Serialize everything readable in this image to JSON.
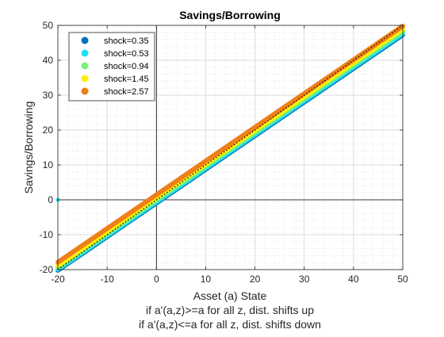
{
  "chart_data": {
    "type": "scatter",
    "title": "Savings/Borrowing",
    "xlabel": "Asset (a) State",
    "ylabel": "Savings/Borrowing",
    "notes": [
      "if a'(a,z)>=a for all z, dist. shifts up",
      "if a'(a,z)<=a for all z, dist. shifts down"
    ],
    "xlim": [
      -20,
      50
    ],
    "ylim": [
      -20,
      50
    ],
    "xticks": [
      -20,
      -10,
      0,
      10,
      20,
      30,
      40,
      50
    ],
    "yticks": [
      -20,
      -10,
      0,
      10,
      20,
      30,
      40,
      50
    ],
    "grid": "on",
    "minor_grid": "on",
    "legend_location": "top-left",
    "reference_line": {
      "style": "dotted",
      "color": "#000000",
      "x": [
        -20,
        50
      ],
      "y": [
        -20,
        50
      ]
    },
    "axis_lines": {
      "x0": 0,
      "y0": 0
    },
    "series": [
      {
        "name": "shock=0.35",
        "color": "#0072BD",
        "x": [
          -20,
          50
        ],
        "y": [
          -20.2,
          47.3
        ]
      },
      {
        "name": "shock=0.53",
        "color": "#1FE0F0",
        "x": [
          -20,
          50
        ],
        "y": [
          -19.9,
          47.7
        ]
      },
      {
        "name": "shock=0.94",
        "color": "#7BF07B",
        "x": [
          -20,
          50
        ],
        "y": [
          -19.4,
          48.3
        ]
      },
      {
        "name": "shock=1.45",
        "color": "#FFF200",
        "x": [
          -20,
          50
        ],
        "y": [
          -18.8,
          49.0
        ]
      },
      {
        "name": "shock=2.57",
        "color": "#F07F17",
        "x": [
          -20,
          50
        ],
        "y": [
          -17.9,
          49.8
        ]
      }
    ],
    "isolated_points": [
      {
        "series": "shock=0.53",
        "x": -20,
        "y": 0,
        "color": "#1FE0F0"
      }
    ]
  }
}
